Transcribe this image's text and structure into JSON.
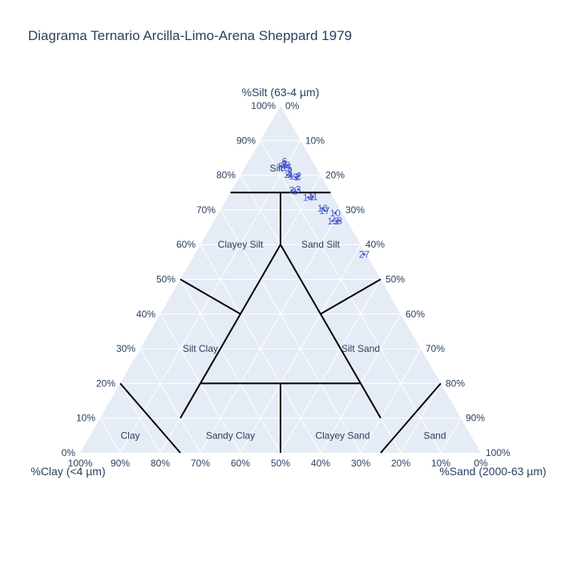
{
  "chart_data": {
    "type": "scatter",
    "subtype": "ternary",
    "title": "Diagrama Ternario Arcilla-Limo-Arena Sheppard 1979",
    "axes": {
      "top": {
        "title": "%Silt (63-4 µm)",
        "component": "silt"
      },
      "left": {
        "title": "%Clay (<4 µm)",
        "component": "clay"
      },
      "right": {
        "title": "%Sand (2000-63 µm)",
        "component": "sand"
      }
    },
    "ticks": {
      "silt": [
        "0%",
        "10%",
        "20%",
        "30%",
        "40%",
        "50%",
        "60%",
        "70%",
        "80%",
        "90%",
        "100%"
      ],
      "clay": [
        "0%",
        "10%",
        "20%",
        "30%",
        "40%",
        "50%",
        "60%",
        "70%",
        "80%",
        "90%",
        "100%"
      ],
      "sand": [
        "0%",
        "10%",
        "20%",
        "30%",
        "40%",
        "50%",
        "60%",
        "70%",
        "80%",
        "90%",
        "100%"
      ]
    },
    "grid": true,
    "colors": {
      "background": "#e5ecf6",
      "grid": "#ffffff",
      "boundary": "#000000",
      "points": "#4a5ac8",
      "text": "#2a3f5f"
    },
    "regions": [
      {
        "name": "Silt",
        "clay": 10,
        "silt": 82,
        "sand": 8
      },
      {
        "name": "Clayey Silt",
        "clay": 30,
        "silt": 60,
        "sand": 10
      },
      {
        "name": "Sand Silt",
        "clay": 10,
        "silt": 60,
        "sand": 30
      },
      {
        "name": "Silt Clay",
        "clay": 55,
        "silt": 30,
        "sand": 15
      },
      {
        "name": "Silt Sand",
        "clay": 15,
        "silt": 30,
        "sand": 55
      },
      {
        "name": "Clay",
        "clay": 85,
        "silt": 5,
        "sand": 10
      },
      {
        "name": "Sandy Clay",
        "clay": 60,
        "silt": 5,
        "sand": 35
      },
      {
        "name": "Clayey Sand",
        "clay": 32,
        "silt": 5,
        "sand": 63
      },
      {
        "name": "Sand",
        "clay": 9,
        "silt": 5,
        "sand": 86
      }
    ],
    "boundaries": [
      [
        {
          "clay": 12.5,
          "silt": 75,
          "sand": 12.5
        },
        {
          "clay": 25,
          "silt": 75,
          "sand": 0
        }
      ],
      [
        {
          "clay": 12.5,
          "silt": 75,
          "sand": 12.5
        },
        {
          "clay": 0,
          "silt": 75,
          "sand": 25
        }
      ],
      [
        {
          "clay": 12.5,
          "silt": 75,
          "sand": 12.5
        },
        {
          "clay": 20,
          "silt": 60,
          "sand": 20
        }
      ],
      [
        {
          "clay": 20,
          "silt": 60,
          "sand": 20
        },
        {
          "clay": 60,
          "silt": 20,
          "sand": 20
        }
      ],
      [
        {
          "clay": 20,
          "silt": 60,
          "sand": 20
        },
        {
          "clay": 20,
          "silt": 20,
          "sand": 60
        }
      ],
      [
        {
          "clay": 60,
          "silt": 20,
          "sand": 20
        },
        {
          "clay": 20,
          "silt": 20,
          "sand": 60
        }
      ],
      [
        {
          "clay": 40,
          "silt": 40,
          "sand": 20
        },
        {
          "clay": 50,
          "silt": 50,
          "sand": 0
        }
      ],
      [
        {
          "clay": 20,
          "silt": 40,
          "sand": 40
        },
        {
          "clay": 0,
          "silt": 50,
          "sand": 50
        }
      ],
      [
        {
          "clay": 60,
          "silt": 20,
          "sand": 20
        },
        {
          "clay": 70,
          "silt": 10,
          "sand": 20
        }
      ],
      [
        {
          "clay": 20,
          "silt": 20,
          "sand": 60
        },
        {
          "clay": 20,
          "silt": 10,
          "sand": 70
        }
      ],
      [
        {
          "clay": 40,
          "silt": 20,
          "sand": 40
        },
        {
          "clay": 50,
          "silt": 0,
          "sand": 50
        }
      ],
      [
        {
          "clay": 80,
          "silt": 20,
          "sand": 0
        },
        {
          "clay": 75,
          "silt": 0,
          "sand": 25
        }
      ],
      [
        {
          "clay": 0,
          "silt": 20,
          "sand": 80
        },
        {
          "clay": 25,
          "silt": 0,
          "sand": 75
        }
      ]
    ],
    "points": [
      {
        "label": "6",
        "clay": 7,
        "silt": 84,
        "sand": 9
      },
      {
        "label": "2",
        "clay": 7.6,
        "silt": 83,
        "sand": 9.4
      },
      {
        "label": "4",
        "clay": 7.4,
        "silt": 82.9,
        "sand": 9.7
      },
      {
        "label": "8",
        "clay": 8.7,
        "silt": 82.6,
        "sand": 8.7
      },
      {
        "label": "3",
        "clay": 6.7,
        "silt": 82.9,
        "sand": 10.4
      },
      {
        "label": "1",
        "clay": 7.9,
        "silt": 82.2,
        "sand": 9.9
      },
      {
        "label": "5",
        "clay": 6.7,
        "silt": 82.1,
        "sand": 11.2
      },
      {
        "label": "2",
        "clay": 7.2,
        "silt": 80.9,
        "sand": 11.9
      },
      {
        "label": "2",
        "clay": 8.3,
        "silt": 80.1,
        "sand": 11.6
      },
      {
        "label": "4",
        "clay": 7.6,
        "silt": 79.8,
        "sand": 12.6
      },
      {
        "label": "1",
        "clay": 7.4,
        "silt": 79.7,
        "sand": 12.9
      },
      {
        "label": "2",
        "clay": 6,
        "silt": 79.5,
        "sand": 14.5
      },
      {
        "label": "9",
        "clay": 6.5,
        "silt": 79.4,
        "sand": 14.1
      },
      {
        "label": "2",
        "clay": 5.5,
        "silt": 79.8,
        "sand": 14.7
      },
      {
        "label": "2",
        "clay": 9.4,
        "silt": 75.6,
        "sand": 15
      },
      {
        "label": "1",
        "clay": 8.7,
        "silt": 75.4,
        "sand": 15.9
      },
      {
        "label": "3",
        "clay": 7.6,
        "silt": 75.9,
        "sand": 16.5
      },
      {
        "label": "14",
        "clay": 6.3,
        "silt": 73.6,
        "sand": 20.1
      },
      {
        "label": "11",
        "clay": 5,
        "silt": 73.8,
        "sand": 21.2
      },
      {
        "label": "16",
        "clay": 4.3,
        "silt": 70.4,
        "sand": 25.3
      },
      {
        "label": "17",
        "clay": 4.1,
        "silt": 69.8,
        "sand": 26.1
      },
      {
        "label": "10",
        "clay": 1.8,
        "silt": 69.1,
        "sand": 29.1
      },
      {
        "label": "15",
        "clay": 3.6,
        "silt": 66.8,
        "sand": 29.6
      },
      {
        "label": "2",
        "clay": 2.6,
        "silt": 66.8,
        "sand": 30.6
      },
      {
        "label": "8",
        "clay": 1.8,
        "silt": 66.9,
        "sand": 31.3
      },
      {
        "label": "27",
        "clay": 0.5,
        "silt": 57.2,
        "sand": 42.3
      }
    ]
  }
}
